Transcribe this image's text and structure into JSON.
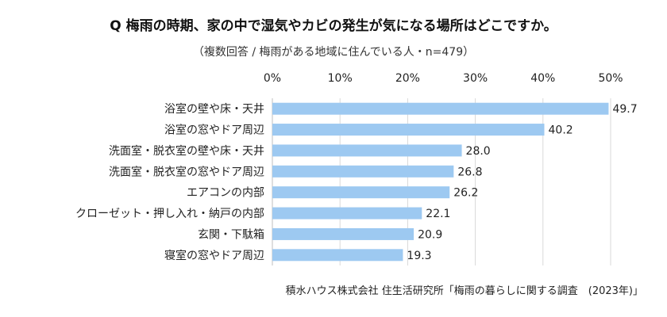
{
  "title": "Q 梅雨の時期、家の中で湿気やカビの発生が気になる場所はどこですか。",
  "subtitle": "（複数回答 / 梅雨がある地域に住んでいる人・n=479）",
  "source": "積水ハウス株式会社 住生活研究所「梅雨の暮らしに関する調査　(2023年)」",
  "chart_data": {
    "type": "bar",
    "orientation": "horizontal",
    "categories": [
      "浴室の壁や床・天井",
      "浴室の窓やドア周辺",
      "洗面室・脱衣室の壁や床・天井",
      "洗面室・脱衣室の窓やドア周辺",
      "エアコンの内部",
      "クローゼット・押し入れ・納戸の内部",
      "玄関・下駄箱",
      "寝室の窓やドア周辺"
    ],
    "values": [
      49.7,
      40.2,
      28.0,
      26.8,
      26.2,
      22.1,
      20.9,
      19.3
    ],
    "value_labels": [
      "49.7",
      "40.2",
      "28.0",
      "26.8",
      "26.2",
      "22.1",
      "20.9",
      "19.3"
    ],
    "xlim": [
      0,
      50
    ],
    "ticks": [
      0,
      10,
      20,
      30,
      40,
      50
    ],
    "tick_labels": [
      "0%",
      "10%",
      "20%",
      "30%",
      "40%",
      "50%"
    ],
    "axis_position": "top",
    "grid": true,
    "bar_color": "#9dc9f1",
    "grid_color": "#d9d9d9",
    "axis_color": "#bfbfbf"
  }
}
